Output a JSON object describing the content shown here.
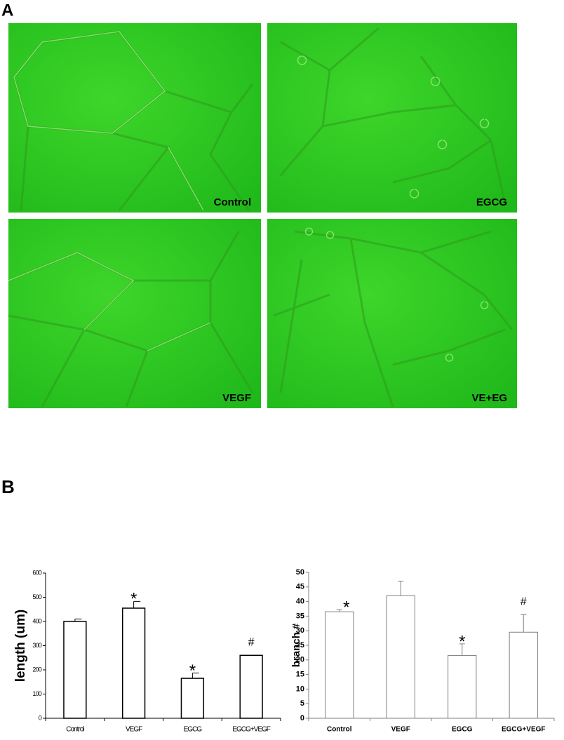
{
  "panel_a": {
    "label": "A",
    "images": [
      {
        "label": "Control"
      },
      {
        "label": "EGCG"
      },
      {
        "label": "VEGF"
      },
      {
        "label": "VE+EG"
      }
    ]
  },
  "panel_b": {
    "label": "B"
  },
  "chart_data": [
    {
      "type": "bar",
      "y_label": "length (um)",
      "categories": [
        "Control",
        "VEGF",
        "EGCG",
        "EGCG+VEGF"
      ],
      "values": [
        400,
        455,
        165,
        260
      ],
      "errors": [
        10,
        28,
        22,
        0
      ],
      "markers": [
        null,
        "*",
        "*",
        "#"
      ],
      "color": "#000000",
      "ylim": [
        0,
        600
      ],
      "yticks": [
        0,
        100,
        200,
        300,
        400,
        500,
        600
      ],
      "grid": false
    },
    {
      "type": "bar",
      "y_label": "branch #",
      "categories": [
        "Control",
        "VEGF",
        "EGCG",
        "EGCG+VEGF"
      ],
      "values": [
        36.5,
        42,
        21.5,
        29.5
      ],
      "errors": [
        0.7,
        5,
        4,
        6
      ],
      "markers": [
        "*",
        null,
        "*",
        "#"
      ],
      "color": "#808080",
      "ylim": [
        0,
        50
      ],
      "yticks": [
        0,
        5,
        10,
        15,
        20,
        25,
        30,
        35,
        40,
        45,
        50
      ],
      "grid": false
    }
  ]
}
